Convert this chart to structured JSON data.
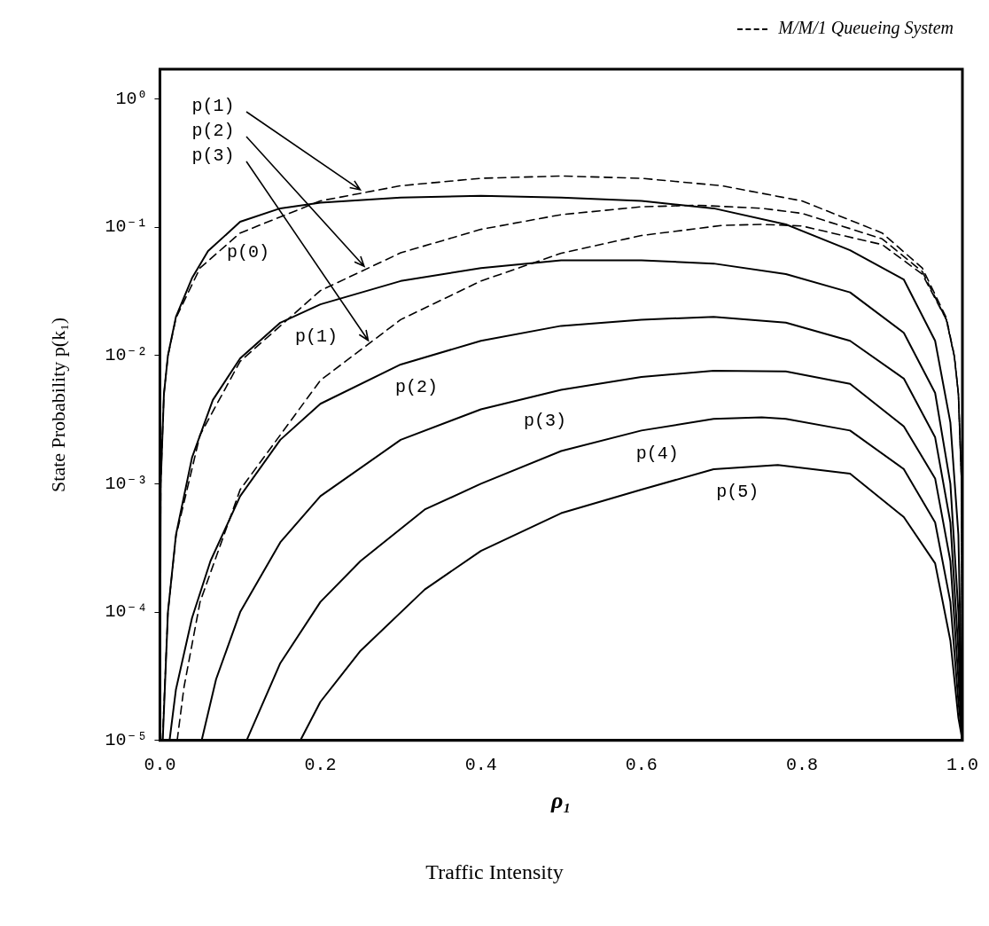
{
  "chart_data": {
    "type": "line",
    "xlabel": "ρ₁",
    "ylabel": "State Probability p(k₁)",
    "annotations": [
      "M/M/1 Queueing System",
      "Traffic Intensity"
    ],
    "log": "y",
    "marker": "none",
    "xlim": [
      0,
      1
    ],
    "ylim": [
      1e-05,
      1.7
    ],
    "xticks": [
      {
        "value": 0,
        "label": "0.0"
      },
      0.2,
      0.4,
      0.6,
      0.8,
      {
        "value": 1,
        "label": "1.0"
      }
    ],
    "yticks": [
      {
        "value": 1,
        "label": "10⁰"
      },
      {
        "value": 0.1,
        "label": "10⁻¹"
      },
      {
        "value": 0.01,
        "label": "10⁻²"
      },
      {
        "value": 0.001,
        "label": "10⁻³"
      },
      {
        "value": 0.0001,
        "label": "10⁻⁴"
      },
      {
        "value": 1e-05,
        "label": "10⁻⁵"
      }
    ],
    "series": [
      {
        "name": "p(0)",
        "color": "#000000",
        "line_style": "solid",
        "x": [
          1e-05,
          0.001,
          0.005,
          0.01,
          0.02,
          0.04,
          0.06,
          0.1,
          0.15,
          0.2,
          0.3,
          0.4,
          0.5,
          0.6,
          0.69,
          0.78,
          0.86,
          0.927,
          0.966,
          0.985,
          0.995,
          1.0
        ],
        "values": [
          1e-05,
          0.001,
          0.005,
          0.01,
          0.02,
          0.04,
          0.065,
          0.11,
          0.14,
          0.155,
          0.17,
          0.175,
          0.17,
          0.16,
          0.14,
          0.105,
          0.066,
          0.039,
          0.013,
          0.003,
          0.0004,
          1e-05
        ]
      },
      {
        "name": "p(1)",
        "color": "#000000",
        "line_style": "solid",
        "x": [
          0.0035,
          0.01,
          0.02,
          0.04,
          0.066,
          0.1,
          0.15,
          0.2,
          0.3,
          0.4,
          0.5,
          0.6,
          0.69,
          0.78,
          0.86,
          0.927,
          0.966,
          0.985,
          0.995,
          1.0
        ],
        "values": [
          1e-05,
          0.0001,
          0.0004,
          0.0016,
          0.0045,
          0.0095,
          0.018,
          0.025,
          0.038,
          0.048,
          0.055,
          0.055,
          0.052,
          0.043,
          0.031,
          0.015,
          0.0051,
          0.001,
          0.0001,
          1e-05
        ]
      },
      {
        "name": "p(2)",
        "color": "#000000",
        "line_style": "solid",
        "x": [
          0.012,
          0.02,
          0.04,
          0.063,
          0.1,
          0.15,
          0.2,
          0.3,
          0.4,
          0.5,
          0.6,
          0.69,
          0.78,
          0.86,
          0.927,
          0.966,
          0.985,
          0.995,
          1.0
        ],
        "values": [
          1e-05,
          2.5e-05,
          9e-05,
          0.00025,
          0.0008,
          0.0022,
          0.0042,
          0.0085,
          0.013,
          0.017,
          0.019,
          0.02,
          0.018,
          0.013,
          0.0066,
          0.0023,
          0.0005,
          5e-05,
          1e-05
        ]
      },
      {
        "name": "p(3)",
        "color": "#000000",
        "line_style": "solid",
        "x": [
          0.052,
          0.07,
          0.1,
          0.15,
          0.2,
          0.3,
          0.4,
          0.5,
          0.6,
          0.69,
          0.78,
          0.86,
          0.927,
          0.966,
          0.985,
          0.995,
          1.0
        ],
        "values": [
          1e-05,
          3e-05,
          0.0001,
          0.00035,
          0.0008,
          0.0022,
          0.0038,
          0.0054,
          0.0068,
          0.0076,
          0.0075,
          0.006,
          0.0028,
          0.0011,
          0.00025,
          3e-05,
          1e-05
        ]
      },
      {
        "name": "p(4)",
        "color": "#000000",
        "line_style": "solid",
        "x": [
          0.108,
          0.15,
          0.2,
          0.25,
          0.33,
          0.4,
          0.5,
          0.6,
          0.69,
          0.75,
          0.78,
          0.86,
          0.927,
          0.966,
          0.985,
          0.995,
          1.0
        ],
        "values": [
          1e-05,
          4e-05,
          0.00012,
          0.00025,
          0.00063,
          0.001,
          0.0018,
          0.0026,
          0.0032,
          0.0033,
          0.0032,
          0.0026,
          0.0013,
          0.0005,
          0.00012,
          2e-05,
          1e-05
        ]
      },
      {
        "name": "p(5)",
        "color": "#000000",
        "line_style": "solid",
        "x": [
          0.175,
          0.2,
          0.25,
          0.33,
          0.4,
          0.5,
          0.6,
          0.69,
          0.77,
          0.86,
          0.927,
          0.966,
          0.985,
          0.995,
          1.0
        ],
        "values": [
          1e-05,
          2e-05,
          5e-05,
          0.00015,
          0.0003,
          0.00059,
          0.0009,
          0.0013,
          0.0014,
          0.0012,
          0.00055,
          0.00024,
          6e-05,
          1.5e-05,
          1e-05
        ]
      },
      {
        "name": "p(1)",
        "color": "#000000",
        "line_style": "dashed",
        "x": [
          1e-05,
          0.001,
          0.005,
          0.01,
          0.02,
          0.05,
          0.1,
          0.2,
          0.3,
          0.4,
          0.5,
          0.6,
          0.7,
          0.8,
          0.9,
          0.95,
          0.98,
          0.99,
          0.995,
          0.999,
          0.99999
        ],
        "values": [
          1e-05,
          0.001,
          0.005,
          0.0099,
          0.0196,
          0.048,
          0.09,
          0.16,
          0.21,
          0.24,
          0.25,
          0.24,
          0.21,
          0.16,
          0.09,
          0.048,
          0.0196,
          0.0099,
          0.005,
          0.001,
          1e-05
        ]
      },
      {
        "name": "p(2)",
        "color": "#000000",
        "line_style": "dashed",
        "x": [
          0.0032,
          0.01,
          0.02,
          0.05,
          0.1,
          0.2,
          0.3,
          0.4,
          0.5,
          0.6,
          0.67,
          0.75,
          0.8,
          0.9,
          0.95,
          0.98,
          0.99,
          0.995,
          0.999,
          0.99999
        ],
        "values": [
          1e-05,
          0.0001,
          0.00039,
          0.0024,
          0.009,
          0.032,
          0.063,
          0.096,
          0.125,
          0.144,
          0.148,
          0.14,
          0.128,
          0.081,
          0.045,
          0.019,
          0.0098,
          0.005,
          0.001,
          1e-05
        ]
      },
      {
        "name": "p(3)",
        "color": "#000000",
        "line_style": "dashed",
        "x": [
          0.0215,
          0.03,
          0.05,
          0.1,
          0.2,
          0.3,
          0.4,
          0.5,
          0.6,
          0.7,
          0.75,
          0.8,
          0.9,
          0.95,
          0.98,
          0.99,
          0.995,
          0.999,
          0.99999
        ],
        "values": [
          1e-05,
          2.6e-05,
          0.00012,
          0.0009,
          0.0064,
          0.019,
          0.038,
          0.0625,
          0.086,
          0.103,
          0.105,
          0.102,
          0.073,
          0.043,
          0.019,
          0.0097,
          0.005,
          0.001,
          1e-05
        ]
      }
    ]
  }
}
